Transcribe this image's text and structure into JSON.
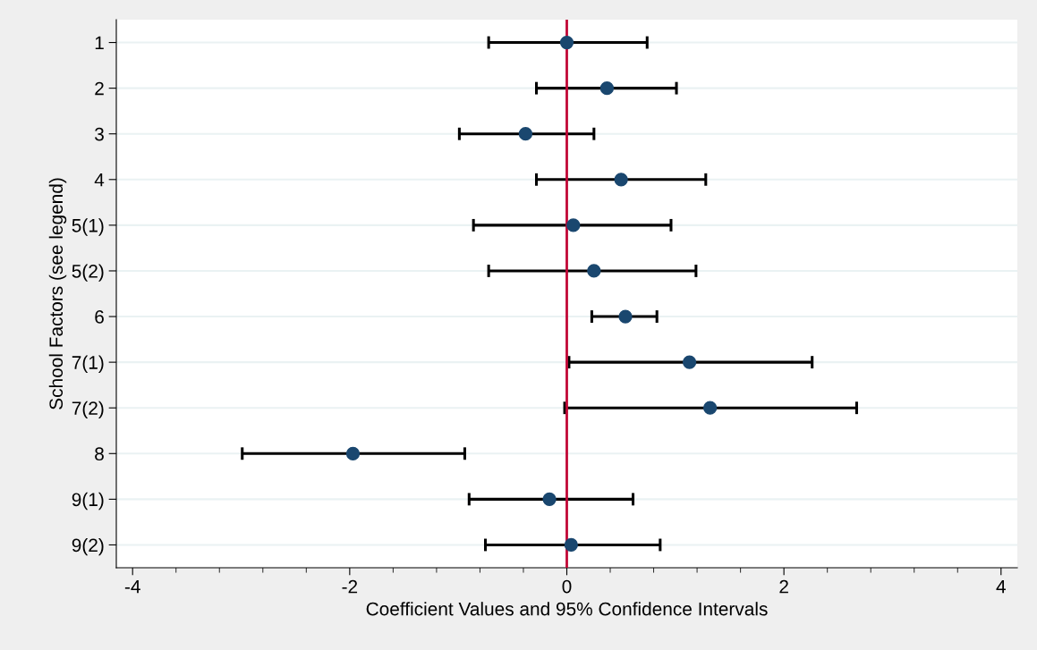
{
  "chart_data": {
    "type": "scatter",
    "orientation": "horizontal",
    "xlabel": "Coefficient Values and 95% Confidence Intervals",
    "ylabel": "School Factors (see legend)",
    "categories": [
      "1",
      "2",
      "3",
      "4",
      "5(1)",
      "5(2)",
      "6",
      "7(1)",
      "7(2)",
      "8",
      "9(1)",
      "9(2)"
    ],
    "series": [
      {
        "color": "#1a476f",
        "values": [
          0,
          0.37,
          -0.38,
          0.5,
          0.06,
          0.25,
          0.54,
          1.13,
          1.32,
          -1.97,
          -0.16,
          0.04
        ],
        "errors": [
          [
            -0.72,
            0.74
          ],
          [
            -0.28,
            1.01
          ],
          [
            -0.99,
            0.25
          ],
          [
            -0.28,
            1.28
          ],
          [
            -0.86,
            0.96
          ],
          [
            -0.72,
            1.19
          ],
          [
            0.23,
            0.83
          ],
          [
            0.02,
            2.26
          ],
          [
            -0.02,
            2.67
          ],
          [
            -2.99,
            -0.94
          ],
          [
            -0.9,
            0.61
          ],
          [
            -0.75,
            0.86
          ]
        ]
      }
    ],
    "xlim": [
      -4.15,
      4.15
    ],
    "xticks": [
      -4,
      -2,
      0,
      2,
      4
    ],
    "ref_lines": [
      {
        "axis": "x",
        "value": 0,
        "color": "#c10534"
      }
    ],
    "grid": "y",
    "marker": "circle"
  }
}
